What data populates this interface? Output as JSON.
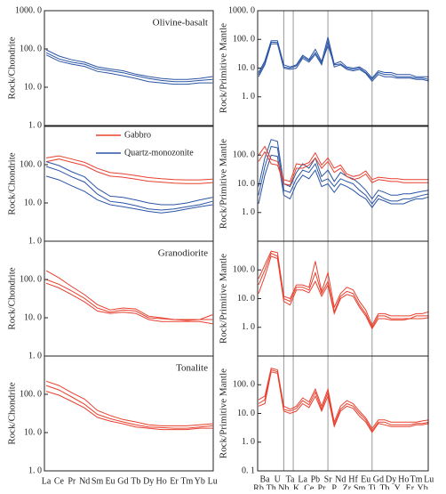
{
  "chart_data": [
    {
      "type": "line",
      "title": "Olivine-basalt",
      "ylabel": "Rock/Chondrite",
      "log_scale": true,
      "ylim": [
        1,
        1000
      ],
      "yticks": [
        {
          "value": 1,
          "label": "1. 0"
        },
        {
          "value": 10,
          "label": "10. 0"
        },
        {
          "value": 100,
          "label": "100. 0"
        },
        {
          "value": 1000,
          "label": "1000. 0"
        }
      ],
      "series": [
        {
          "color": "#2b55a5",
          "values": [
            95,
            65,
            52,
            45,
            34,
            30,
            27,
            22,
            19,
            17,
            16,
            16,
            17,
            19
          ]
        },
        {
          "color": "#2b55a5",
          "values": [
            80,
            55,
            45,
            40,
            30,
            27,
            24,
            20,
            17,
            15,
            14,
            14,
            15,
            16
          ]
        },
        {
          "color": "#2b55a5",
          "values": [
            70,
            48,
            40,
            35,
            26,
            23,
            20,
            17,
            14,
            13,
            12,
            12,
            13,
            13
          ]
        }
      ]
    },
    {
      "type": "line",
      "ylabel": "Rock/Primitive Mantle",
      "log_scale": true,
      "ylim": [
        0.1,
        1000
      ],
      "yticks": [
        {
          "value": 1,
          "label": "1. 0"
        },
        {
          "value": 10,
          "label": "10. 0"
        },
        {
          "value": 100,
          "label": "100. 0"
        },
        {
          "value": 1000,
          "label": "1000. 0"
        }
      ],
      "series": [
        {
          "color": "#2b55a5",
          "values": [
            7,
            18,
            90,
            90,
            13,
            11,
            13,
            28,
            20,
            45,
            17,
            120,
            14,
            17,
            11,
            10,
            11,
            8,
            4.5,
            8,
            7,
            7,
            6,
            6,
            6,
            5,
            5,
            5
          ]
        },
        {
          "color": "#2b55a5",
          "values": [
            5,
            13,
            70,
            70,
            10,
            9,
            10,
            22,
            16,
            30,
            13,
            85,
            11,
            13,
            9,
            8,
            9,
            6.5,
            3.5,
            6,
            5,
            5,
            4.5,
            4.5,
            4.5,
            4,
            4,
            3.5
          ]
        },
        {
          "color": "#2b55a5",
          "values": [
            6,
            15,
            80,
            78,
            11,
            10,
            12,
            25,
            18,
            35,
            15,
            60,
            13,
            14,
            10,
            9,
            10,
            7,
            4,
            7,
            6,
            6,
            5,
            5,
            5,
            4.5,
            4.5,
            4
          ]
        }
      ]
    },
    {
      "type": "line",
      "ylabel": "Rock/Chondrite",
      "log_scale": true,
      "ylim": [
        1,
        1000
      ],
      "yticks": [
        {
          "value": 1,
          "label": "1. 0"
        },
        {
          "value": 10,
          "label": "10. 0"
        },
        {
          "value": 100,
          "label": "100. 0"
        }
      ],
      "series": [
        {
          "name": "Gabbro",
          "color": "#e8402f",
          "values": [
            150,
            170,
            140,
            115,
            80,
            62,
            58,
            52,
            46,
            43,
            41,
            40,
            40,
            42
          ]
        },
        {
          "name": "Gabbro",
          "color": "#e8402f",
          "values": [
            120,
            140,
            115,
            95,
            65,
            50,
            47,
            42,
            37,
            35,
            33,
            32,
            32,
            34
          ]
        },
        {
          "name": "Quartz-monozonite",
          "color": "#2b55a5",
          "values": [
            120,
            95,
            65,
            48,
            24,
            15,
            14,
            12,
            10,
            9,
            9,
            10,
            12,
            14
          ]
        },
        {
          "name": "Quartz-monozonite",
          "color": "#2b55a5",
          "values": [
            90,
            70,
            48,
            35,
            17,
            11,
            10,
            8.5,
            7,
            6.5,
            7,
            8,
            9,
            11
          ]
        },
        {
          "name": "Quartz-monozonite",
          "color": "#2b55a5",
          "values": [
            50,
            40,
            28,
            20,
            12,
            9,
            8,
            7,
            6,
            5.5,
            6,
            7,
            8,
            9
          ]
        }
      ]
    },
    {
      "type": "line",
      "ylabel": "Rock/Primitive Mantle",
      "log_scale": true,
      "ylim": [
        0.1,
        1000
      ],
      "yticks": [
        {
          "value": 1,
          "label": "1. 0"
        },
        {
          "value": 10,
          "label": "10. 0"
        },
        {
          "value": 100,
          "label": "100. 0"
        }
      ],
      "series": [
        {
          "color": "#2b55a5",
          "values": [
            8,
            80,
            350,
            300,
            10,
            8,
            25,
            50,
            35,
            80,
            18,
            30,
            12,
            25,
            18,
            15,
            10,
            6,
            3,
            6,
            5,
            4,
            4,
            4.5,
            4.5,
            5,
            5.5,
            6
          ]
        },
        {
          "color": "#2b55a5",
          "values": [
            4,
            40,
            200,
            180,
            6,
            5,
            15,
            30,
            25,
            50,
            12,
            15,
            8,
            15,
            12,
            10,
            6,
            4,
            2,
            4,
            3,
            2.5,
            2.5,
            3,
            3,
            3.5,
            4,
            4.5
          ]
        },
        {
          "color": "#2b55a5",
          "values": [
            2,
            20,
            100,
            90,
            4,
            3,
            10,
            20,
            15,
            30,
            8,
            10,
            5,
            10,
            8,
            6,
            4,
            3,
            1.5,
            3,
            2.5,
            2,
            2,
            2,
            2.5,
            3,
            3,
            3.5
          ]
        },
        {
          "color": "#e8402f",
          "values": [
            100,
            200,
            70,
            60,
            14,
            12,
            50,
            45,
            55,
            120,
            45,
            80,
            35,
            45,
            22,
            18,
            20,
            28,
            14,
            17,
            16,
            15,
            15,
            14,
            14,
            14,
            14,
            14
          ]
        },
        {
          "color": "#e8402f",
          "values": [
            60,
            130,
            50,
            45,
            10,
            9,
            35,
            35,
            45,
            80,
            35,
            60,
            25,
            35,
            18,
            14,
            16,
            22,
            11,
            14,
            13,
            12,
            12,
            11,
            11,
            11,
            11,
            11
          ]
        }
      ]
    },
    {
      "type": "line",
      "title": "Granodiorite",
      "ylabel": "Rock/Chondrite",
      "log_scale": true,
      "ylim": [
        1,
        1000
      ],
      "yticks": [
        {
          "value": 1,
          "label": "1. 0"
        },
        {
          "value": 10,
          "label": "10. 0"
        },
        {
          "value": 100,
          "label": "100. 0"
        }
      ],
      "series": [
        {
          "color": "#e8402f",
          "values": [
            170,
            110,
            65,
            40,
            22,
            16,
            18,
            17,
            11,
            10,
            9,
            9,
            9,
            12
          ]
        },
        {
          "color": "#e8402f",
          "values": [
            100,
            75,
            50,
            32,
            18,
            14,
            16,
            15,
            10,
            9.5,
            9,
            8.5,
            9,
            9
          ]
        },
        {
          "color": "#e8402f",
          "values": [
            80,
            60,
            40,
            26,
            15,
            13,
            14,
            13,
            9,
            8,
            8,
            8,
            8,
            7
          ]
        }
      ]
    },
    {
      "type": "line",
      "ylabel": "Rock/Primitive Mantle",
      "log_scale": true,
      "ylim": [
        0.1,
        1000
      ],
      "yticks": [
        {
          "value": 1,
          "label": "1. 0"
        },
        {
          "value": 10,
          "label": "10. 0"
        },
        {
          "value": 100,
          "label": "100. 0"
        }
      ],
      "series": [
        {
          "color": "#e8402f",
          "values": [
            50,
            150,
            450,
            400,
            12,
            10,
            30,
            30,
            25,
            200,
            18,
            80,
            5,
            15,
            25,
            20,
            8,
            4,
            1.2,
            3,
            3,
            2.5,
            2.5,
            2.5,
            2.5,
            3,
            3,
            3.5
          ]
        },
        {
          "color": "#e8402f",
          "values": [
            30,
            100,
            380,
            300,
            10,
            8,
            25,
            25,
            20,
            80,
            15,
            40,
            3.5,
            12,
            18,
            15,
            6,
            3,
            1,
            2.5,
            2.5,
            2,
            2,
            2,
            2,
            2.5,
            2.5,
            2.5
          ]
        },
        {
          "color": "#e8402f",
          "values": [
            15,
            60,
            300,
            250,
            8,
            6,
            20,
            20,
            16,
            40,
            12,
            30,
            3,
            10,
            14,
            12,
            5,
            2.5,
            0.9,
            2,
            2,
            1.8,
            1.8,
            1.8,
            2,
            2,
            2,
            2.2
          ]
        }
      ]
    },
    {
      "type": "line",
      "title": "Tonalite",
      "ylabel": "Rock/Chondrite",
      "log_scale": true,
      "ylim": [
        1,
        1000
      ],
      "yticks": [
        {
          "value": 1,
          "label": "1. 0"
        },
        {
          "value": 10,
          "label": "10. 0"
        },
        {
          "value": 100,
          "label": "100. 0"
        }
      ],
      "categories": [
        "La",
        "Ce",
        "Pr",
        "Nd",
        "Sm",
        "Eu",
        "Gd",
        "Tb",
        "Dy",
        "Ho",
        "Er",
        "Tm",
        "Yb",
        "Lu"
      ],
      "series": [
        {
          "color": "#e8402f",
          "values": [
            220,
            170,
            110,
            75,
            38,
            28,
            22,
            19,
            16,
            15,
            15,
            15,
            16,
            17
          ]
        },
        {
          "color": "#e8402f",
          "values": [
            170,
            130,
            85,
            55,
            30,
            23,
            19,
            16,
            14,
            13.5,
            13,
            13,
            14,
            15
          ]
        },
        {
          "color": "#e8402f",
          "values": [
            120,
            95,
            65,
            44,
            25,
            20,
            17,
            14,
            13,
            12,
            12,
            12,
            13,
            13
          ]
        }
      ]
    },
    {
      "type": "line",
      "ylabel": "Rock/Primitive Mantle",
      "log_scale": true,
      "ylim": [
        0.1,
        1000
      ],
      "yticks": [
        {
          "value": 0.1,
          "label": "0. 1"
        },
        {
          "value": 1,
          "label": "1. 0"
        },
        {
          "value": 10,
          "label": "10. 0"
        },
        {
          "value": 100,
          "label": "100. 0"
        }
      ],
      "categories": [
        "Rb",
        "Ba",
        "Th",
        "U",
        "Nb",
        "Ta",
        "K",
        "La",
        "Ce",
        "Pb",
        "Pr",
        "Sr",
        "P",
        "Nd",
        "Zr",
        "Hf",
        "Sm",
        "Eu",
        "Ti",
        "Gd",
        "Tb",
        "Dy",
        "Y",
        "Ho",
        "Er",
        "Tm",
        "Yb",
        "Lu"
      ],
      "series": [
        {
          "color": "#e8402f",
          "values": [
            30,
            40,
            380,
            330,
            18,
            14,
            18,
            35,
            25,
            70,
            18,
            70,
            5,
            18,
            28,
            22,
            12,
            7,
            3,
            6,
            6,
            5,
            5,
            5,
            5,
            5,
            5.5,
            6
          ]
        },
        {
          "color": "#e8402f",
          "values": [
            22,
            30,
            330,
            280,
            14,
            12,
            15,
            28,
            20,
            55,
            14,
            55,
            4,
            14,
            22,
            18,
            10,
            6,
            2.5,
            5,
            5,
            4,
            4,
            4,
            4,
            4.5,
            4.5,
            5
          ]
        },
        {
          "color": "#e8402f",
          "values": [
            18,
            22,
            280,
            250,
            12,
            10,
            12,
            22,
            16,
            40,
            12,
            40,
            3.5,
            12,
            18,
            15,
            8,
            5,
            2.2,
            4.5,
            4,
            3.5,
            3.5,
            3.5,
            3.5,
            4,
            4,
            4.5
          ]
        }
      ]
    }
  ]
}
